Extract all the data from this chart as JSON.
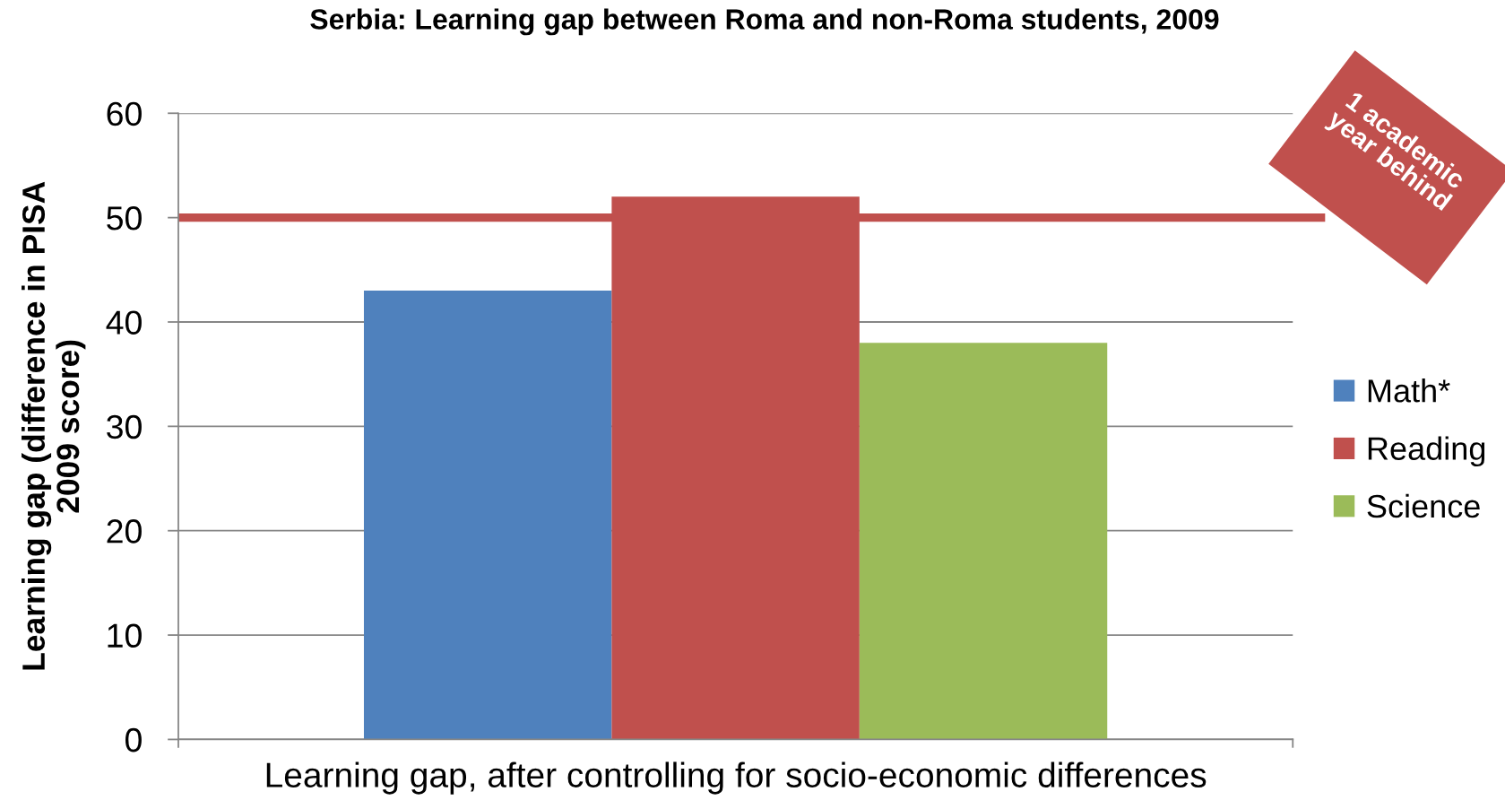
{
  "chart_data": {
    "type": "bar",
    "title": "Serbia: Learning gap between Roma and non-Roma students, 2009",
    "ylabel": "Learning gap (difference in PISA\n2009 score)",
    "categories": [
      "Learning gap, after controlling for socio-economic differences"
    ],
    "series": [
      {
        "name": "Math*",
        "color": "#4f81bd",
        "values": [
          43
        ]
      },
      {
        "name": "Reading",
        "color": "#c0504d",
        "values": [
          52
        ]
      },
      {
        "name": "Science",
        "color": "#9bbb59",
        "values": [
          38
        ]
      }
    ],
    "ylim": [
      0,
      60
    ],
    "yticks": [
      0,
      10,
      20,
      30,
      40,
      50,
      60
    ],
    "grid": "y",
    "legend": "right",
    "ref_lines": [
      {
        "axis": "y",
        "value": 50,
        "label": "1 academic year behind",
        "color": "#c0504d"
      }
    ]
  }
}
